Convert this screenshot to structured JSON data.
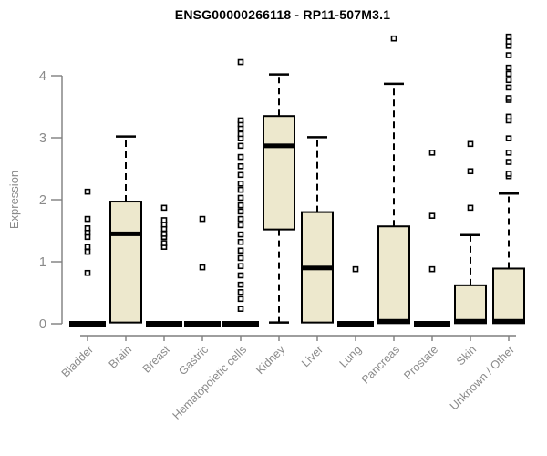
{
  "chart_data": {
    "type": "boxplot",
    "title": "ENSG00000266118 - RP11-507M3.1",
    "ylabel": "Expression",
    "xlabel": "",
    "ylim": [
      0,
      4.7
    ],
    "yticks": [
      0,
      1,
      2,
      3,
      4
    ],
    "grid": false,
    "legend": "none",
    "box_fill": "#EDE8CD",
    "box_stroke": "#000000",
    "axis_color": "#7E7E7E",
    "label_color": "#8A8A8A",
    "categories": [
      "Bladder",
      "Brain",
      "Breast",
      "Gastric",
      "Hematopoietic cells",
      "Kidney",
      "Liver",
      "Lung",
      "Pancreas",
      "Prostate",
      "Skin",
      "Unknown / Other"
    ],
    "boxes": [
      {
        "label": "Bladder",
        "flat": true,
        "median": 0,
        "outliers": [
          0.82,
          1.16,
          1.24,
          1.4,
          1.47,
          1.54,
          1.69,
          2.13
        ]
      },
      {
        "label": "Brain",
        "flat": false,
        "q1": 0.02,
        "median": 1.45,
        "q3": 1.97,
        "lo": 0.02,
        "hi": 3.02,
        "outliers": []
      },
      {
        "label": "Breast",
        "flat": true,
        "median": 0,
        "outliers": [
          1.24,
          1.3,
          1.4,
          1.45,
          1.53,
          1.6,
          1.67,
          1.87
        ]
      },
      {
        "label": "Gastric",
        "flat": true,
        "median": 0,
        "outliers": [
          0.91,
          1.69
        ]
      },
      {
        "label": "Hematopoietic cells",
        "flat": true,
        "median": 0,
        "outliers": [
          0.24,
          0.4,
          0.51,
          0.63,
          0.78,
          0.93,
          1.06,
          1.18,
          1.32,
          1.44,
          1.59,
          1.69,
          1.81,
          1.91,
          2.03,
          2.16,
          2.26,
          2.4,
          2.54,
          2.69,
          2.87,
          2.99,
          3.06,
          3.15,
          3.22,
          3.28,
          4.22
        ]
      },
      {
        "label": "Kidney",
        "flat": false,
        "q1": 1.52,
        "median": 2.87,
        "q3": 3.35,
        "lo": 0.02,
        "hi": 4.02,
        "outliers": []
      },
      {
        "label": "Liver",
        "flat": false,
        "q1": 0.02,
        "median": 0.9,
        "q3": 1.8,
        "lo": 0.02,
        "hi": 3.01,
        "outliers": []
      },
      {
        "label": "Lung",
        "flat": true,
        "median": 0,
        "outliers": [
          0.88
        ]
      },
      {
        "label": "Pancreas",
        "flat": false,
        "q1": 0.01,
        "median": 0.04,
        "q3": 1.57,
        "lo": 0.01,
        "hi": 3.87,
        "outliers": [
          4.6
        ]
      },
      {
        "label": "Prostate",
        "flat": true,
        "median": 0,
        "outliers": [
          0.88,
          1.74,
          2.76
        ]
      },
      {
        "label": "Skin",
        "flat": false,
        "q1": 0.01,
        "median": 0.04,
        "q3": 0.62,
        "lo": 0.01,
        "hi": 1.43,
        "outliers": [
          1.87,
          2.46,
          2.9
        ]
      },
      {
        "label": "Unknown / Other",
        "flat": false,
        "q1": 0.01,
        "median": 0.04,
        "q3": 0.89,
        "lo": 0.01,
        "hi": 2.1,
        "outliers": [
          2.38,
          2.42,
          2.61,
          2.76,
          2.99,
          3.28,
          3.34,
          3.61,
          3.64,
          3.81,
          3.93,
          4.03,
          4.13,
          4.33,
          4.48,
          4.55,
          4.63
        ]
      }
    ]
  }
}
